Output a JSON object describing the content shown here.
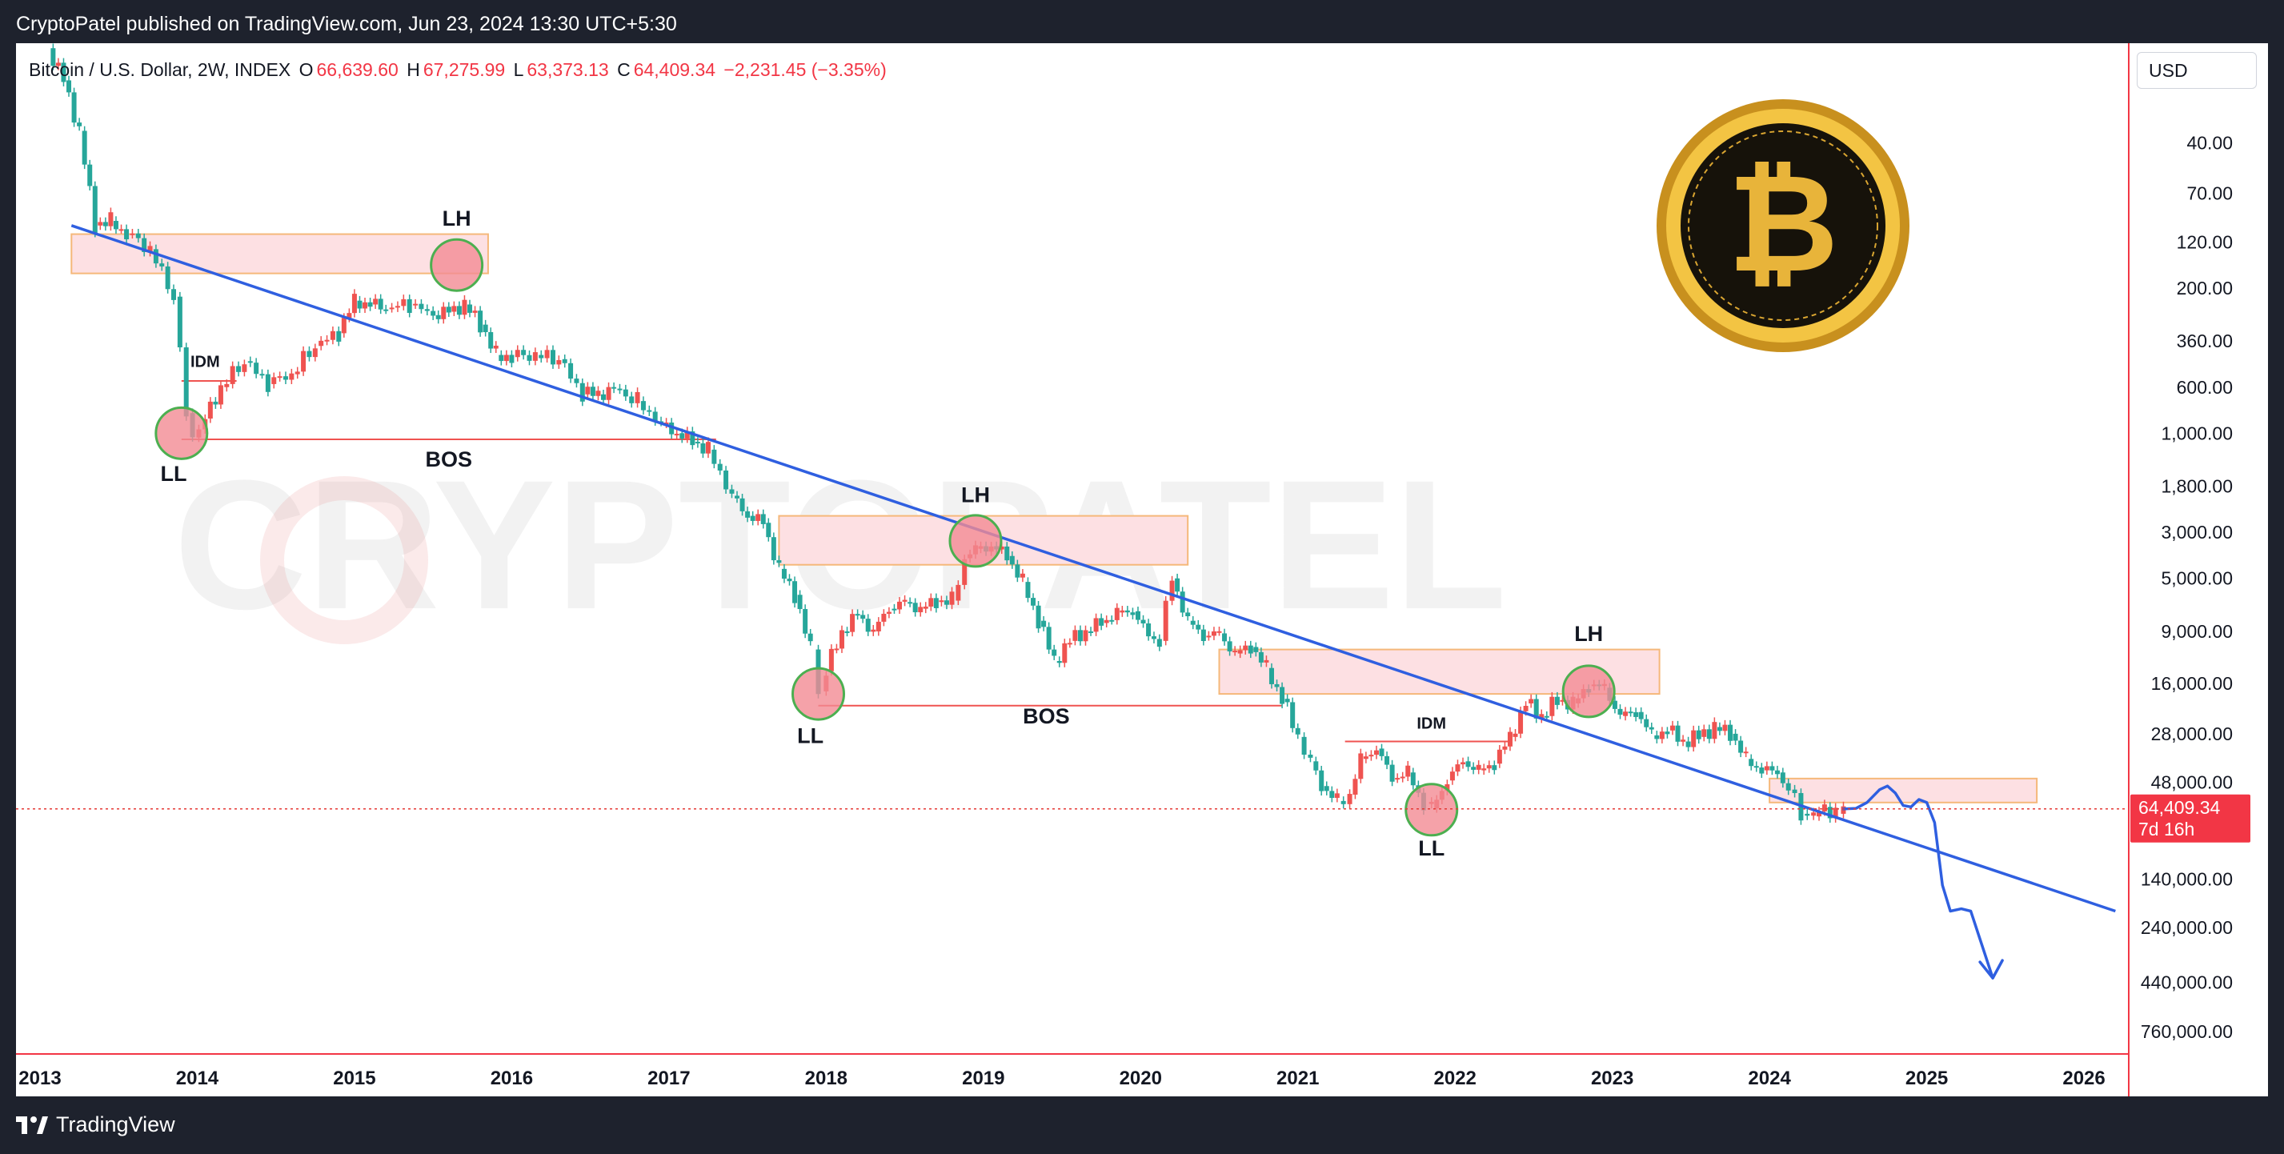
{
  "publisher_line": "CryptoPatel published on TradingView.com, Jun 23, 2024 13:30 UTC+5:30",
  "brand": "TradingView",
  "watermark": "CRYPTOPATEL",
  "currency_button": "USD",
  "legend": {
    "symbol": "Bitcoin / U.S. Dollar, 2W, INDEX",
    "o_label": "O",
    "o_value": "66,639.60",
    "h_label": "H",
    "h_value": "67,275.99",
    "l_label": "L",
    "l_value": "63,373.13",
    "c_label": "C",
    "c_value": "64,409.34",
    "change": "−2,231.45 (−3.35%)"
  },
  "colors": {
    "up": "#26a69a",
    "down": "#ef5350",
    "trendline": "#2f5fe0",
    "zone_fill": "#fde0e3",
    "zone_border": "#f5b87a",
    "circle_fill": "#f28b94",
    "circle_border": "#4caf50",
    "price_line": "#e53935"
  },
  "chart_data": {
    "type": "candlestick",
    "title": "",
    "scale": "log",
    "inverted": true,
    "y_axis_position": "right",
    "ylim": [
      15,
      900000
    ],
    "yticks": [
      "40.00",
      "70.00",
      "120.00",
      "200.00",
      "360.00",
      "600.00",
      "1,000.00",
      "1,800.00",
      "3,000.00",
      "5,000.00",
      "9,000.00",
      "16,000.00",
      "28,000.00",
      "48,000.00",
      "140,000.00",
      "240,000.00",
      "440,000.00",
      "760,000.00"
    ],
    "ytick_values": [
      40,
      70,
      120,
      200,
      360,
      600,
      1000,
      1800,
      3000,
      5000,
      9000,
      16000,
      28000,
      48000,
      140000,
      240000,
      440000,
      760000
    ],
    "xlim": [
      2013.0,
      2026.3
    ],
    "xticks": [
      "2013",
      "2014",
      "2015",
      "2016",
      "2017",
      "2018",
      "2019",
      "2020",
      "2021",
      "2022",
      "2023",
      "2024",
      "2025",
      "2026"
    ],
    "price_series": [
      [
        2013.05,
        14
      ],
      [
        2013.15,
        20
      ],
      [
        2013.25,
        35
      ],
      [
        2013.35,
        100
      ],
      [
        2013.45,
        95
      ],
      [
        2013.55,
        110
      ],
      [
        2013.7,
        130
      ],
      [
        2013.85,
        220
      ],
      [
        2013.93,
        800
      ],
      [
        2013.97,
        1050
      ],
      [
        2014.05,
        850
      ],
      [
        2014.15,
        600
      ],
      [
        2014.3,
        450
      ],
      [
        2014.45,
        580
      ],
      [
        2014.6,
        520
      ],
      [
        2014.75,
        380
      ],
      [
        2014.9,
        330
      ],
      [
        2015.0,
        230
      ],
      [
        2015.1,
        240
      ],
      [
        2015.2,
        250
      ],
      [
        2015.35,
        240
      ],
      [
        2015.5,
        270
      ],
      [
        2015.6,
        260
      ],
      [
        2015.7,
        240
      ],
      [
        2015.8,
        300
      ],
      [
        2015.9,
        420
      ],
      [
        2016.0,
        430
      ],
      [
        2016.15,
        420
      ],
      [
        2016.3,
        440
      ],
      [
        2016.45,
        650
      ],
      [
        2016.55,
        650
      ],
      [
        2016.65,
        610
      ],
      [
        2016.8,
        700
      ],
      [
        2016.95,
        900
      ],
      [
        2017.05,
        1000
      ],
      [
        2017.15,
        1100
      ],
      [
        2017.25,
        1200
      ],
      [
        2017.4,
        2000
      ],
      [
        2017.5,
        2500
      ],
      [
        2017.6,
        2700
      ],
      [
        2017.7,
        4500
      ],
      [
        2017.8,
        6000
      ],
      [
        2017.9,
        11000
      ],
      [
        2017.95,
        17500
      ],
      [
        2018.0,
        14000
      ],
      [
        2018.1,
        9000
      ],
      [
        2018.2,
        7500
      ],
      [
        2018.3,
        9000
      ],
      [
        2018.4,
        7000
      ],
      [
        2018.5,
        6500
      ],
      [
        2018.6,
        7000
      ],
      [
        2018.7,
        6500
      ],
      [
        2018.8,
        6400
      ],
      [
        2018.88,
        4000
      ],
      [
        2018.95,
        3600
      ],
      [
        2019.05,
        3500
      ],
      [
        2019.15,
        3900
      ],
      [
        2019.25,
        5200
      ],
      [
        2019.35,
        8000
      ],
      [
        2019.45,
        12500
      ],
      [
        2019.55,
        10000
      ],
      [
        2019.65,
        9000
      ],
      [
        2019.75,
        8200
      ],
      [
        2019.85,
        7300
      ],
      [
        2019.95,
        7200
      ],
      [
        2020.05,
        9500
      ],
      [
        2020.12,
        10000
      ],
      [
        2020.2,
        5000
      ],
      [
        2020.3,
        8000
      ],
      [
        2020.4,
        9500
      ],
      [
        2020.5,
        9200
      ],
      [
        2020.6,
        11500
      ],
      [
        2020.7,
        10700
      ],
      [
        2020.8,
        13500
      ],
      [
        2020.9,
        19000
      ],
      [
        2021.0,
        29000
      ],
      [
        2021.08,
        38000
      ],
      [
        2021.15,
        50000
      ],
      [
        2021.25,
        59000
      ],
      [
        2021.33,
        55000
      ],
      [
        2021.4,
        37000
      ],
      [
        2021.5,
        33000
      ],
      [
        2021.6,
        46000
      ],
      [
        2021.7,
        43000
      ],
      [
        2021.8,
        61000
      ],
      [
        2021.85,
        64000
      ],
      [
        2021.95,
        47000
      ],
      [
        2022.05,
        38000
      ],
      [
        2022.15,
        42000
      ],
      [
        2022.25,
        39000
      ],
      [
        2022.35,
        29000
      ],
      [
        2022.45,
        20000
      ],
      [
        2022.55,
        23000
      ],
      [
        2022.65,
        19500
      ],
      [
        2022.75,
        20000
      ],
      [
        2022.85,
        16500
      ],
      [
        2022.95,
        16800
      ],
      [
        2023.05,
        23000
      ],
      [
        2023.15,
        22000
      ],
      [
        2023.25,
        28500
      ],
      [
        2023.35,
        27000
      ],
      [
        2023.45,
        30500
      ],
      [
        2023.55,
        29000
      ],
      [
        2023.65,
        26000
      ],
      [
        2023.75,
        28000
      ],
      [
        2023.85,
        37000
      ],
      [
        2023.95,
        42000
      ],
      [
        2024.05,
        43000
      ],
      [
        2024.12,
        52000
      ],
      [
        2024.2,
        68000
      ],
      [
        2024.28,
        70000
      ],
      [
        2024.35,
        63000
      ],
      [
        2024.42,
        68000
      ],
      [
        2024.47,
        64409
      ]
    ],
    "trendline": [
      [
        2013.2,
        100
      ],
      [
        2026.2,
        200000
      ]
    ],
    "projection": [
      [
        2024.47,
        64409
      ],
      [
        2024.55,
        64000
      ],
      [
        2024.62,
        60000
      ],
      [
        2024.7,
        52000
      ],
      [
        2024.75,
        50000
      ],
      [
        2024.8,
        54000
      ],
      [
        2024.85,
        62000
      ],
      [
        2024.9,
        63000
      ],
      [
        2024.95,
        58000
      ],
      [
        2025.0,
        60000
      ],
      [
        2025.05,
        75000
      ],
      [
        2025.1,
        150000
      ],
      [
        2025.15,
        200000
      ],
      [
        2025.22,
        195000
      ],
      [
        2025.28,
        200000
      ],
      [
        2025.35,
        290000
      ],
      [
        2025.42,
        420000
      ]
    ],
    "zones": [
      {
        "x": [
          2013.2,
          2015.85
        ],
        "y": [
          110,
          170
        ]
      },
      {
        "x": [
          2017.7,
          2020.3
        ],
        "y": [
          2500,
          4300
        ]
      },
      {
        "x": [
          2020.5,
          2023.3
        ],
        "y": [
          11000,
          18000
        ]
      },
      {
        "x": [
          2024.0,
          2025.7
        ],
        "y": [
          46000,
          60000
        ]
      }
    ],
    "circles": [
      {
        "x": 2013.9,
        "y": 1000
      },
      {
        "x": 2015.65,
        "y": 155
      },
      {
        "x": 2017.95,
        "y": 18000
      },
      {
        "x": 2018.95,
        "y": 3300
      },
      {
        "x": 2021.85,
        "y": 65000
      },
      {
        "x": 2022.85,
        "y": 17500
      }
    ],
    "hlines": [
      {
        "x": [
          2013.9,
          2017.3
        ],
        "y": 1070
      },
      {
        "x": [
          2017.95,
          2020.9
        ],
        "y": 20500
      },
      {
        "x": [
          2021.3,
          2022.35
        ],
        "y": 30500
      },
      {
        "x": [
          2013.9,
          2014.25
        ],
        "y": 560
      }
    ],
    "annotations": [
      {
        "text": "LL",
        "x": 2013.85,
        "y": 1700
      },
      {
        "text": "LH",
        "x": 2015.65,
        "y": 100
      },
      {
        "text": "BOS",
        "x": 2015.6,
        "y": 1450
      },
      {
        "text": "IDM",
        "x": 2014.05,
        "y": 480
      },
      {
        "text": "LH",
        "x": 2018.95,
        "y": 2150
      },
      {
        "text": "LL",
        "x": 2017.9,
        "y": 31000
      },
      {
        "text": "BOS",
        "x": 2019.4,
        "y": 25000
      },
      {
        "text": "LH",
        "x": 2022.85,
        "y": 10000
      },
      {
        "text": "IDM",
        "x": 2021.85,
        "y": 26500
      },
      {
        "text": "LL",
        "x": 2021.85,
        "y": 108000
      }
    ],
    "last_price": {
      "value": 64409.34,
      "label": "64,409.34",
      "countdown": "7d 16h"
    }
  }
}
